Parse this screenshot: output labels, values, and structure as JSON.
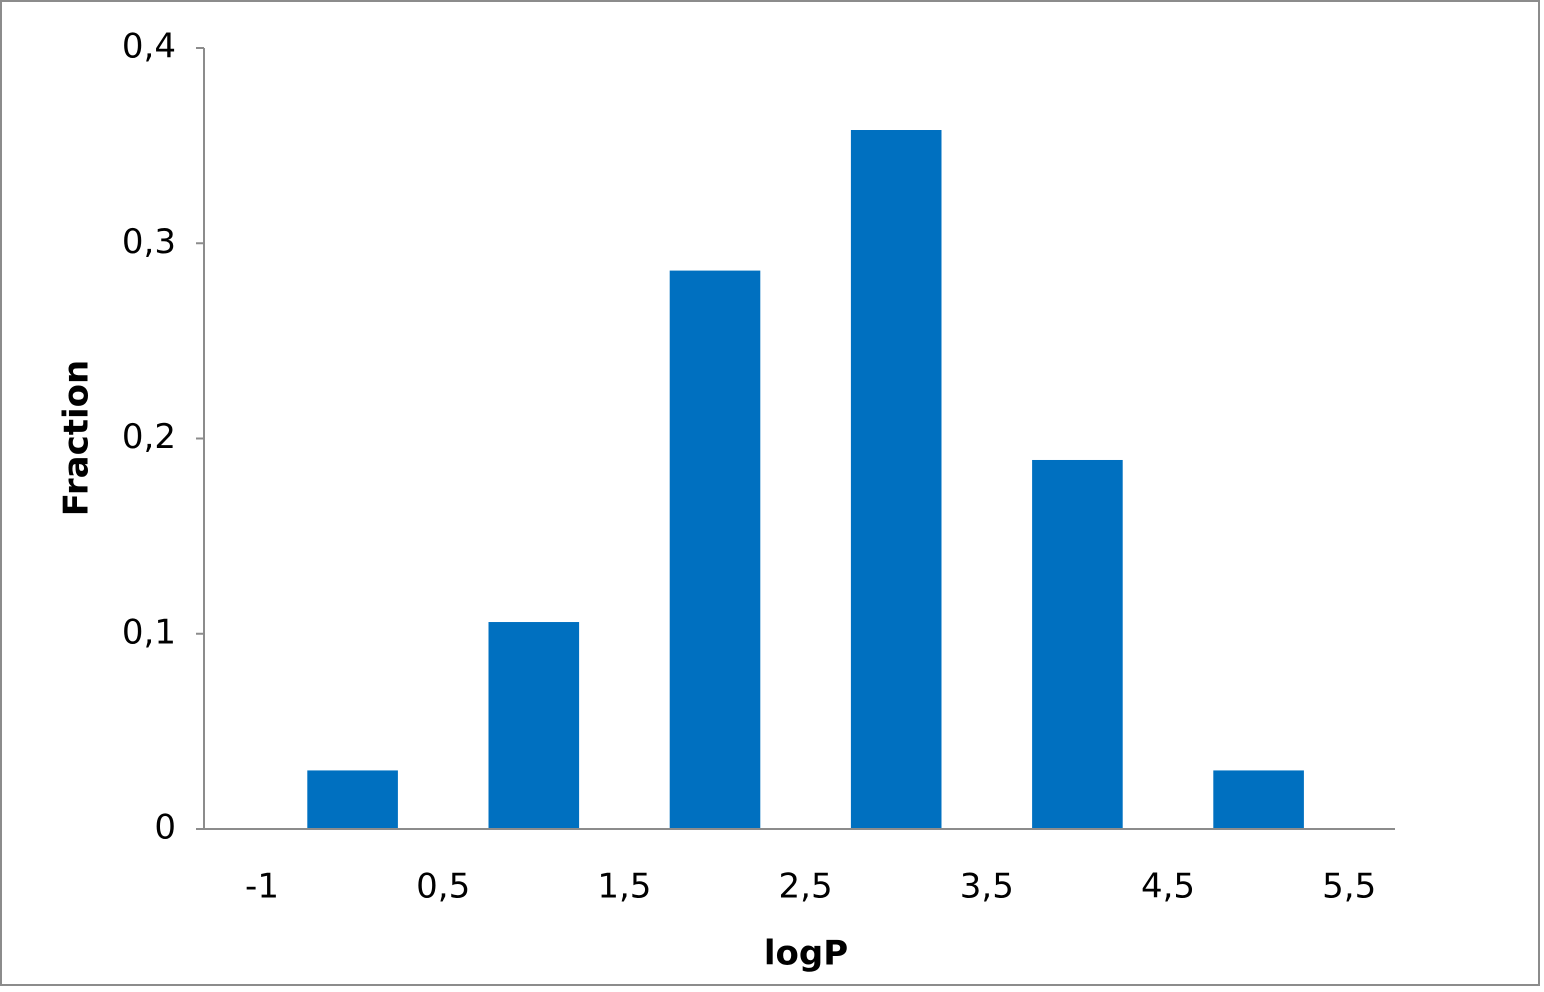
{
  "chart_data": {
    "type": "histogram",
    "xlabel": "logP",
    "ylabel": "Fraction",
    "bins": [
      {
        "value": -1,
        "label": "-1"
      },
      {
        "value": 0.5,
        "label": "0,5"
      },
      {
        "value": 1.5,
        "label": "1,5"
      },
      {
        "value": 2.5,
        "label": "2,5"
      },
      {
        "value": 3.5,
        "label": "3,5"
      },
      {
        "value": 4.5,
        "label": "4,5"
      },
      {
        "value": 5.5,
        "label": "5,5"
      }
    ],
    "values": [
      0.03,
      0.106,
      0.286,
      0.358,
      0.189,
      0.03
    ],
    "color": "#0070c0",
    "ylim": [
      0,
      0.4
    ],
    "yticks": [
      0,
      {
        "value": 0.1,
        "label": "0,1"
      },
      {
        "value": 0.2,
        "label": "0,2"
      },
      {
        "value": 0.3,
        "label": "0,3"
      },
      {
        "value": 0.4,
        "label": "0,4"
      }
    ],
    "grid": false
  }
}
